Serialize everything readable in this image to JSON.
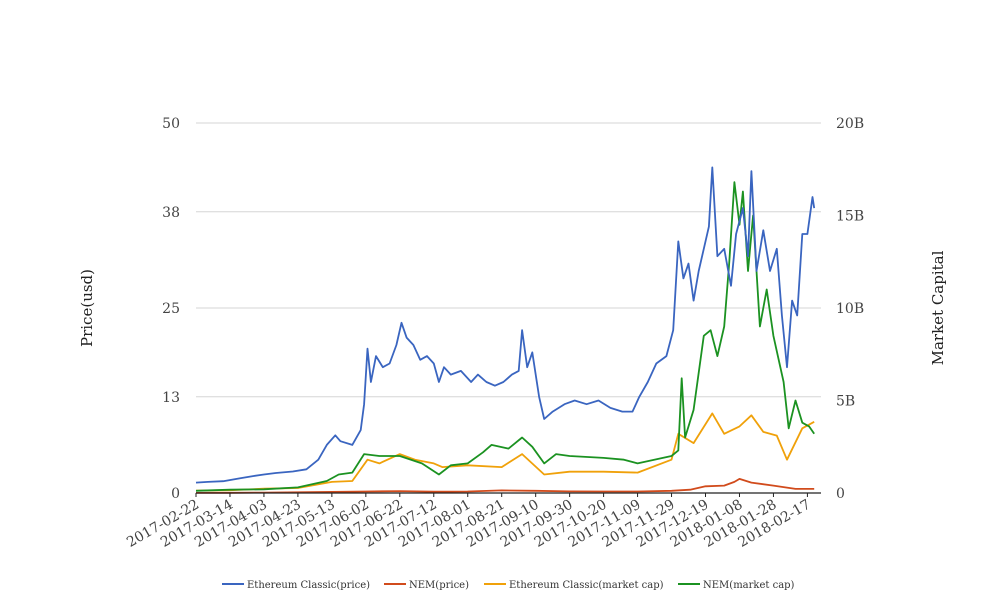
{
  "chart_data": {
    "type": "line",
    "title": "",
    "ylabel_left": "Price(usd)",
    "ylabel_right": "Market Capital",
    "x_tick_labels": [
      "2017-02-22",
      "2017-03-14",
      "2017-04-03",
      "2017-04-23",
      "2017-05-13",
      "2017-06-02",
      "2017-06-22",
      "2017-07-12",
      "2017-08-01",
      "2017-08-21",
      "2017-09-10",
      "2017-09-30",
      "2017-10-20",
      "2017-11-09",
      "2017-11-29",
      "2017-12-19",
      "2018-01-08",
      "2018-01-28",
      "2018-02-17"
    ],
    "y_left": {
      "min": 0,
      "max": 50,
      "ticks": [
        0,
        13,
        25,
        38,
        50
      ],
      "tick_labels": [
        "0",
        "13",
        "25",
        "38",
        "50"
      ]
    },
    "y_right": {
      "min": 0,
      "max": 20000000000,
      "ticks": [
        0,
        5000000000,
        10000000000,
        15000000000,
        20000000000
      ],
      "tick_labels": [
        "0",
        "5B",
        "10B",
        "15B",
        "20B"
      ]
    },
    "x_range": [
      "2017-02-22",
      "2018-02-25"
    ],
    "grid": true,
    "legend_position": "bottom",
    "series": [
      {
        "name": "Ethereum Classic(price)",
        "axis": "left",
        "color": "#3a65c0",
        "points": [
          [
            "2017-02-22",
            1.4
          ],
          [
            "2017-03-01",
            1.5
          ],
          [
            "2017-03-10",
            1.6
          ],
          [
            "2017-03-20",
            2.0
          ],
          [
            "2017-03-28",
            2.3
          ],
          [
            "2017-04-03",
            2.5
          ],
          [
            "2017-04-10",
            2.7
          ],
          [
            "2017-04-20",
            2.9
          ],
          [
            "2017-04-28",
            3.2
          ],
          [
            "2017-05-05",
            4.5
          ],
          [
            "2017-05-10",
            6.5
          ],
          [
            "2017-05-15",
            7.8
          ],
          [
            "2017-05-18",
            7.0
          ],
          [
            "2017-05-25",
            6.5
          ],
          [
            "2017-05-30",
            8.5
          ],
          [
            "2017-06-01",
            12.0
          ],
          [
            "2017-06-03",
            19.5
          ],
          [
            "2017-06-05",
            15.0
          ],
          [
            "2017-06-08",
            18.5
          ],
          [
            "2017-06-12",
            17.0
          ],
          [
            "2017-06-16",
            17.5
          ],
          [
            "2017-06-20",
            20.0
          ],
          [
            "2017-06-23",
            23.0
          ],
          [
            "2017-06-26",
            21.0
          ],
          [
            "2017-06-30",
            20.0
          ],
          [
            "2017-07-04",
            18.0
          ],
          [
            "2017-07-08",
            18.5
          ],
          [
            "2017-07-12",
            17.5
          ],
          [
            "2017-07-15",
            15.0
          ],
          [
            "2017-07-18",
            17.0
          ],
          [
            "2017-07-22",
            16.0
          ],
          [
            "2017-07-28",
            16.5
          ],
          [
            "2017-08-03",
            15.0
          ],
          [
            "2017-08-07",
            16.0
          ],
          [
            "2017-08-12",
            15.0
          ],
          [
            "2017-08-17",
            14.5
          ],
          [
            "2017-08-22",
            15.0
          ],
          [
            "2017-08-27",
            16.0
          ],
          [
            "2017-08-31",
            16.5
          ],
          [
            "2017-09-02",
            22.0
          ],
          [
            "2017-09-05",
            17.0
          ],
          [
            "2017-09-08",
            19.0
          ],
          [
            "2017-09-12",
            13.0
          ],
          [
            "2017-09-15",
            10.0
          ],
          [
            "2017-09-20",
            11.0
          ],
          [
            "2017-09-27",
            12.0
          ],
          [
            "2017-10-03",
            12.5
          ],
          [
            "2017-10-10",
            12.0
          ],
          [
            "2017-10-17",
            12.5
          ],
          [
            "2017-10-24",
            11.5
          ],
          [
            "2017-10-31",
            11.0
          ],
          [
            "2017-11-06",
            11.0
          ],
          [
            "2017-11-10",
            13.0
          ],
          [
            "2017-11-15",
            15.0
          ],
          [
            "2017-11-20",
            17.5
          ],
          [
            "2017-11-26",
            18.5
          ],
          [
            "2017-11-30",
            22.0
          ],
          [
            "2017-12-03",
            34.0
          ],
          [
            "2017-12-06",
            29.0
          ],
          [
            "2017-12-09",
            31.0
          ],
          [
            "2017-12-12",
            26.0
          ],
          [
            "2017-12-15",
            30.0
          ],
          [
            "2017-12-18",
            33.0
          ],
          [
            "2017-12-21",
            36.0
          ],
          [
            "2017-12-23",
            44.0
          ],
          [
            "2017-12-26",
            32.0
          ],
          [
            "2017-12-30",
            33.0
          ],
          [
            "2018-01-03",
            28.0
          ],
          [
            "2018-01-06",
            35.0
          ],
          [
            "2018-01-10",
            38.5
          ],
          [
            "2018-01-13",
            32.0
          ],
          [
            "2018-01-15",
            43.5
          ],
          [
            "2018-01-18",
            30.0
          ],
          [
            "2018-01-22",
            35.5
          ],
          [
            "2018-01-26",
            30.0
          ],
          [
            "2018-01-30",
            33.0
          ],
          [
            "2018-02-02",
            24.0
          ],
          [
            "2018-02-05",
            17.0
          ],
          [
            "2018-02-08",
            26.0
          ],
          [
            "2018-02-11",
            24.0
          ],
          [
            "2018-02-14",
            35.0
          ],
          [
            "2018-02-17",
            35.0
          ],
          [
            "2018-02-20",
            40.0
          ],
          [
            "2018-02-21",
            38.5
          ]
        ]
      },
      {
        "name": "NEM(price)",
        "axis": "left",
        "color": "#d14b1c",
        "points": [
          [
            "2017-02-22",
            0.02
          ],
          [
            "2017-03-14",
            0.03
          ],
          [
            "2017-04-03",
            0.05
          ],
          [
            "2017-04-23",
            0.09
          ],
          [
            "2017-05-13",
            0.15
          ],
          [
            "2017-06-02",
            0.2
          ],
          [
            "2017-06-22",
            0.25
          ],
          [
            "2017-07-12",
            0.18
          ],
          [
            "2017-08-01",
            0.2
          ],
          [
            "2017-08-21",
            0.35
          ],
          [
            "2017-09-10",
            0.3
          ],
          [
            "2017-09-30",
            0.22
          ],
          [
            "2017-10-20",
            0.2
          ],
          [
            "2017-11-09",
            0.2
          ],
          [
            "2017-11-29",
            0.3
          ],
          [
            "2017-12-10",
            0.45
          ],
          [
            "2017-12-19",
            0.9
          ],
          [
            "2017-12-30",
            1.0
          ],
          [
            "2018-01-05",
            1.5
          ],
          [
            "2018-01-08",
            1.9
          ],
          [
            "2018-01-15",
            1.4
          ],
          [
            "2018-01-28",
            1.0
          ],
          [
            "2018-02-10",
            0.55
          ],
          [
            "2018-02-21",
            0.55
          ]
        ]
      },
      {
        "name": "Ethereum Classic(market cap)",
        "axis": "right",
        "color": "#f0a10a",
        "points": [
          [
            "2017-02-22",
            130000000
          ],
          [
            "2017-03-14",
            150000000
          ],
          [
            "2017-04-03",
            230000000
          ],
          [
            "2017-04-23",
            270000000
          ],
          [
            "2017-05-13",
            600000000
          ],
          [
            "2017-05-25",
            650000000
          ],
          [
            "2017-06-03",
            1800000000
          ],
          [
            "2017-06-10",
            1600000000
          ],
          [
            "2017-06-22",
            2100000000
          ],
          [
            "2017-07-01",
            1800000000
          ],
          [
            "2017-07-12",
            1600000000
          ],
          [
            "2017-07-17",
            1400000000
          ],
          [
            "2017-08-01",
            1500000000
          ],
          [
            "2017-08-21",
            1400000000
          ],
          [
            "2017-09-02",
            2100000000
          ],
          [
            "2017-09-15",
            1000000000
          ],
          [
            "2017-09-30",
            1150000000
          ],
          [
            "2017-10-20",
            1150000000
          ],
          [
            "2017-11-09",
            1100000000
          ],
          [
            "2017-11-29",
            1800000000
          ],
          [
            "2017-12-03",
            3200000000
          ],
          [
            "2017-12-12",
            2700000000
          ],
          [
            "2017-12-23",
            4300000000
          ],
          [
            "2017-12-30",
            3200000000
          ],
          [
            "2018-01-08",
            3600000000
          ],
          [
            "2018-01-15",
            4200000000
          ],
          [
            "2018-01-22",
            3300000000
          ],
          [
            "2018-01-30",
            3100000000
          ],
          [
            "2018-02-05",
            1800000000
          ],
          [
            "2018-02-14",
            3500000000
          ],
          [
            "2018-02-21",
            3850000000
          ]
        ]
      },
      {
        "name": "NEM(market cap)",
        "axis": "right",
        "color": "#1b9221",
        "points": [
          [
            "2017-02-22",
            120000000
          ],
          [
            "2017-03-14",
            180000000
          ],
          [
            "2017-04-03",
            200000000
          ],
          [
            "2017-04-23",
            300000000
          ],
          [
            "2017-05-10",
            650000000
          ],
          [
            "2017-05-17",
            1000000000
          ],
          [
            "2017-05-25",
            1100000000
          ],
          [
            "2017-06-01",
            2100000000
          ],
          [
            "2017-06-10",
            2000000000
          ],
          [
            "2017-06-22",
            2000000000
          ],
          [
            "2017-07-05",
            1600000000
          ],
          [
            "2017-07-15",
            1000000000
          ],
          [
            "2017-07-22",
            1500000000
          ],
          [
            "2017-08-01",
            1600000000
          ],
          [
            "2017-08-10",
            2200000000
          ],
          [
            "2017-08-15",
            2600000000
          ],
          [
            "2017-08-25",
            2400000000
          ],
          [
            "2017-09-02",
            3000000000
          ],
          [
            "2017-09-08",
            2500000000
          ],
          [
            "2017-09-15",
            1600000000
          ],
          [
            "2017-09-22",
            2100000000
          ],
          [
            "2017-09-30",
            2000000000
          ],
          [
            "2017-10-20",
            1900000000
          ],
          [
            "2017-11-01",
            1800000000
          ],
          [
            "2017-11-09",
            1600000000
          ],
          [
            "2017-11-29",
            2000000000
          ],
          [
            "2017-12-03",
            2300000000
          ],
          [
            "2017-12-05",
            6200000000
          ],
          [
            "2017-12-07",
            3000000000
          ],
          [
            "2017-12-12",
            4500000000
          ],
          [
            "2017-12-18",
            8500000000
          ],
          [
            "2017-12-22",
            8800000000
          ],
          [
            "2017-12-26",
            7400000000
          ],
          [
            "2017-12-30",
            9000000000
          ],
          [
            "2018-01-02",
            12500000000
          ],
          [
            "2018-01-05",
            16800000000
          ],
          [
            "2018-01-08",
            14500000000
          ],
          [
            "2018-01-10",
            16300000000
          ],
          [
            "2018-01-13",
            12000000000
          ],
          [
            "2018-01-16",
            15000000000
          ],
          [
            "2018-01-20",
            9000000000
          ],
          [
            "2018-01-24",
            11000000000
          ],
          [
            "2018-01-28",
            8500000000
          ],
          [
            "2018-02-03",
            6000000000
          ],
          [
            "2018-02-06",
            3500000000
          ],
          [
            "2018-02-10",
            5000000000
          ],
          [
            "2018-02-14",
            3800000000
          ],
          [
            "2018-02-18",
            3600000000
          ],
          [
            "2018-02-21",
            3200000000
          ]
        ]
      }
    ]
  }
}
